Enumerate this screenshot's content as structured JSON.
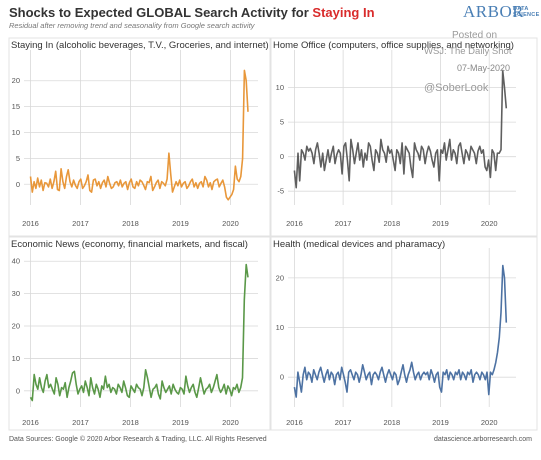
{
  "header": {
    "title_main": "Shocks to Expected GLOBAL Search Activity for ",
    "title_highlight": "Staying In",
    "subtitle": "Residual after removing trend and seasonality from Google search activity",
    "logo_main": "ARBOR",
    "logo_line1": "DATA",
    "logo_line2": "SCIENCE"
  },
  "watermark": {
    "posted_on": "Posted on",
    "source": "WSJ: The Daily Shot",
    "date": "07-May-2020",
    "handle": "@SoberLook"
  },
  "footer": {
    "left": "Data Sources: Google © 2020 Arbor Research & Trading, LLC. All Rights Reserved",
    "right": "datascience.arborresearch.com"
  },
  "colors": {
    "highlight": "#d92b2b",
    "grid": "#d9d9d9",
    "border": "#e3e3e3"
  },
  "chart_data": [
    {
      "type": "line",
      "title": "Staying In (alcoholic beverages, T.V., Groceries, and internet)",
      "color": "#e8973a",
      "x_ticks": [
        "2016",
        "2017",
        "2018",
        "2019",
        "2020"
      ],
      "y_ticks": [
        "0",
        "5",
        "10",
        "15",
        "20"
      ],
      "ylim": [
        -4,
        24
      ],
      "series": [
        {
          "x_start": 2016.0,
          "x_end": 2020.35,
          "values": [
            1.5,
            -1.5,
            0.5,
            -0.8,
            1.2,
            -0.5,
            0.8,
            -1.2,
            0.3,
            0.2,
            -0.5,
            1.0,
            -0.8,
            0.5,
            2.5,
            -1.0,
            -1.2,
            3.0,
            0.5,
            -0.8,
            1.5,
            2.8,
            0.5,
            -0.5,
            0.8,
            -0.2,
            -0.8,
            0.5,
            1.0,
            -0.8,
            -0.3,
            0.5,
            1.8,
            -1.2,
            -1.5,
            0.8,
            1.0,
            -0.3,
            0.5,
            -0.8,
            0.3,
            0.8,
            -0.5,
            1.5,
            0.2,
            -0.8,
            -0.5,
            0.3,
            0.5,
            -0.3,
            0.8,
            -0.5,
            0.2,
            0.5,
            -1.0,
            0.3,
            1.0,
            -0.5,
            -0.8,
            0.5,
            -0.3,
            0.8,
            0.5,
            -0.2,
            -1.0,
            0.5,
            0.3,
            1.5,
            -1.2,
            -0.5,
            0.3,
            0.8,
            -0.8,
            0.5,
            0.2,
            -0.3,
            1.0,
            6.0,
            2.0,
            -1.5,
            -0.5,
            0.5,
            -0.3,
            0.8,
            -0.5,
            0.2,
            0.5,
            -0.8,
            -0.3,
            0.5,
            1.0,
            -0.5,
            0.3,
            -0.8,
            0.2,
            0.5,
            -0.5,
            1.5,
            0.8,
            -0.5,
            0.3,
            -1.0,
            0.5,
            0.8,
            1.0,
            -0.5,
            0.2,
            0.8,
            -0.5,
            -2.5,
            -3.0,
            -2.5,
            -2.0,
            -1.0,
            3.5,
            1.0,
            0.5,
            1.5,
            5.0,
            22.0,
            20.0,
            14.0
          ]
        }
      ]
    },
    {
      "type": "line",
      "title": "Home Office (computers, office supplies, and networking)",
      "color": "#5f5f5f",
      "x_ticks": [
        "2016",
        "2017",
        "2018",
        "2019",
        "2020"
      ],
      "y_ticks": [
        "-5",
        "0",
        "5",
        "10"
      ],
      "ylim": [
        -7,
        14
      ],
      "series": [
        {
          "x_start": 2016.0,
          "x_end": 2020.35,
          "values": [
            -2.0,
            -4.5,
            0.5,
            -3.5,
            1.0,
            0.5,
            -0.5,
            1.5,
            0.8,
            1.2,
            0.5,
            -1.0,
            1.0,
            2.0,
            0.5,
            -1.5,
            0.5,
            -2.0,
            -0.5,
            1.0,
            -0.8,
            0.5,
            1.5,
            -1.0,
            0.3,
            1.0,
            0.5,
            -2.5,
            1.5,
            2.0,
            -0.5,
            -3.5,
            2.5,
            1.0,
            -1.0,
            0.5,
            2.0,
            -0.5,
            1.0,
            -1.5,
            0.5,
            -0.5,
            2.0,
            1.5,
            -0.5,
            -2.0,
            1.0,
            0.5,
            -0.8,
            2.5,
            1.0,
            0.5,
            -0.8,
            1.5,
            0.5,
            1.0,
            -0.5,
            -2.0,
            1.0,
            0.5,
            -1.0,
            2.0,
            -2.5,
            1.5,
            1.0,
            0.5,
            -1.5,
            -3.0,
            2.0,
            1.0,
            0.5,
            -0.5,
            1.5,
            1.0,
            -1.0,
            0.5,
            1.5,
            0.8,
            -0.5,
            -1.5,
            0.5,
            1.0,
            -3.5,
            1.0,
            0.5,
            2.0,
            -0.5,
            1.0,
            2.5,
            -0.5,
            1.0,
            0.5,
            -1.0,
            1.5,
            2.0,
            0.5,
            -1.0,
            1.0,
            0.5,
            -0.5,
            1.5,
            1.0,
            0.5,
            -1.0,
            0.8,
            1.5,
            0.5,
            1.0,
            -1.5,
            -2.0,
            -0.5,
            -3.0,
            1.0,
            0.5,
            -2.0,
            0.5,
            0.5,
            1.0,
            12.5,
            10.0,
            7.0
          ]
        }
      ]
    },
    {
      "type": "line",
      "title": "Economic News (economy, financial markets, and fiscal)",
      "color": "#5a9848",
      "x_ticks": [
        "2016",
        "2017",
        "2018",
        "2019",
        "2020"
      ],
      "y_ticks": [
        "0",
        "10",
        "20",
        "30",
        "40"
      ],
      "ylim": [
        -5,
        41
      ],
      "series": [
        {
          "x_start": 2016.0,
          "x_end": 2020.35,
          "values": [
            -2.0,
            -3.0,
            5.0,
            2.0,
            0.5,
            4.0,
            1.0,
            -0.5,
            3.0,
            5.0,
            1.0,
            2.0,
            0.5,
            -1.0,
            4.0,
            2.0,
            -1.5,
            1.0,
            0.5,
            2.5,
            -2.0,
            1.0,
            3.0,
            5.5,
            6.0,
            2.0,
            -1.0,
            0.5,
            1.5,
            -0.5,
            3.0,
            1.0,
            -1.5,
            4.0,
            1.0,
            -1.0,
            2.0,
            0.5,
            -2.0,
            1.5,
            0.5,
            4.5,
            1.0,
            2.0,
            -0.5,
            1.0,
            0.5,
            -1.0,
            2.0,
            1.0,
            -0.5,
            3.0,
            1.0,
            -1.5,
            -2.0,
            1.5,
            0.5,
            -0.5,
            2.0,
            1.0,
            0.5,
            -1.5,
            1.0,
            6.5,
            4.0,
            1.0,
            -2.0,
            0.5,
            1.0,
            2.0,
            -1.0,
            -2.5,
            3.0,
            1.0,
            -0.5,
            0.5,
            1.5,
            -1.0,
            2.0,
            0.5,
            -0.5,
            -1.0,
            1.0,
            0.5,
            -1.0,
            4.5,
            1.5,
            -0.5,
            1.0,
            2.0,
            -0.5,
            -2.0,
            1.0,
            4.0,
            1.5,
            -1.0,
            0.5,
            1.0,
            2.0,
            -0.5,
            1.0,
            3.0,
            5.0,
            1.0,
            -0.5,
            0.5,
            2.0,
            -1.0,
            1.5,
            0.5,
            -1.5,
            1.0,
            0.5,
            2.0,
            -0.5,
            1.0,
            4.0,
            28.0,
            39.0,
            35.0
          ]
        }
      ]
    },
    {
      "type": "line",
      "title": "Health (medical devices and pharamacy)",
      "color": "#4d72a3",
      "x_ticks": [
        "2016",
        "2017",
        "2018",
        "2019",
        "2020"
      ],
      "y_ticks": [
        "0",
        "10",
        "20"
      ],
      "ylim": [
        -6,
        24
      ],
      "series": [
        {
          "x_start": 2016.0,
          "x_end": 2020.35,
          "values": [
            -2.0,
            -4.0,
            1.0,
            -1.0,
            -3.0,
            0.5,
            2.0,
            -0.5,
            1.0,
            0.5,
            -1.0,
            1.5,
            0.5,
            -0.5,
            1.0,
            2.0,
            0.5,
            -1.0,
            0.5,
            1.5,
            -0.5,
            1.0,
            0.5,
            -1.5,
            0.5,
            1.0,
            -0.5,
            2.0,
            0.5,
            -1.0,
            -3.0,
            1.0,
            1.5,
            0.5,
            -0.5,
            1.0,
            0.5,
            -1.0,
            0.5,
            2.5,
            1.0,
            -0.5,
            0.5,
            1.0,
            -1.5,
            0.5,
            1.0,
            0.5,
            -0.5,
            1.0,
            2.0,
            0.5,
            -1.0,
            0.5,
            1.5,
            0.5,
            -0.5,
            1.0,
            0.5,
            -1.5,
            -0.5,
            1.0,
            2.5,
            0.5,
            -1.0,
            0.5,
            1.5,
            3.0,
            1.0,
            -0.5,
            0.5,
            1.0,
            -0.5,
            0.5,
            1.0,
            0.5,
            1.0,
            -0.5,
            1.5,
            0.5,
            -1.0,
            0.5,
            1.0,
            -2.0,
            -3.0,
            1.0,
            0.5,
            1.5,
            -0.5,
            1.0,
            0.5,
            -0.5,
            1.0,
            0.5,
            1.5,
            -0.5,
            1.0,
            0.5,
            -0.5,
            1.0,
            0.5,
            1.5,
            -1.0,
            0.5,
            1.0,
            0.5,
            -0.5,
            1.0,
            0.5,
            -0.5,
            1.0,
            -3.5,
            1.0,
            0.5,
            1.5,
            3.0,
            5.0,
            8.0,
            13.0,
            22.5,
            20.0,
            11.0
          ]
        }
      ]
    }
  ]
}
